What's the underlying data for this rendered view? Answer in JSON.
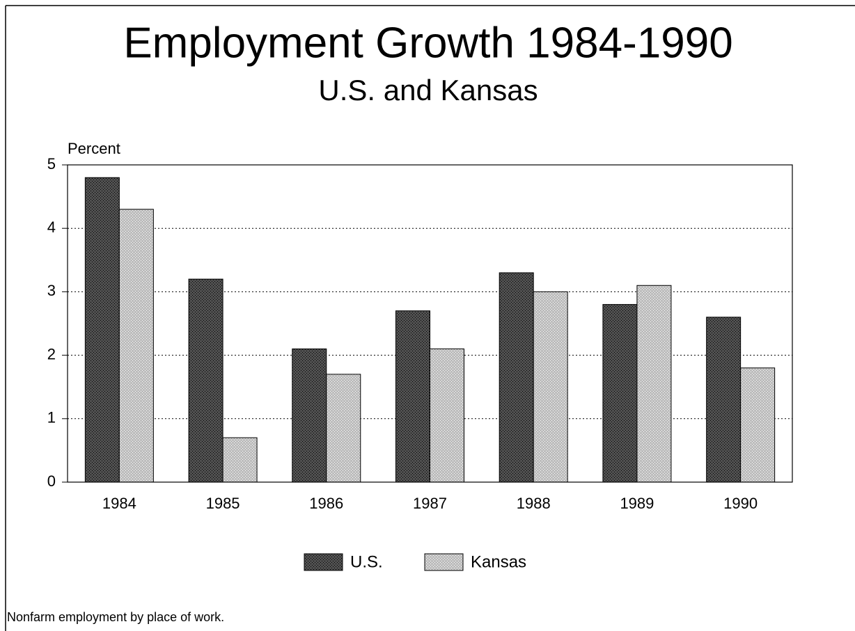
{
  "chart_data": {
    "type": "bar",
    "title": "Employment Growth  1984-1990",
    "subtitle": "U.S. and Kansas",
    "y_label": "Percent",
    "note": "Nonfarm employment by place of work.",
    "categories": [
      "1984",
      "1985",
      "1986",
      "1987",
      "1988",
      "1989",
      "1990"
    ],
    "series": [
      {
        "name": "U.S.",
        "color": "#505050",
        "values": [
          4.8,
          3.2,
          2.1,
          2.7,
          3.3,
          2.8,
          2.6
        ]
      },
      {
        "name": "Kansas",
        "color": "#bdbdbd",
        "values": [
          4.3,
          0.7,
          1.7,
          2.1,
          3.0,
          3.1,
          1.8
        ]
      }
    ],
    "ylim": [
      0,
      5
    ],
    "yticks": [
      0,
      1,
      2,
      3,
      4,
      5
    ],
    "grid": true,
    "legend": "bottom"
  }
}
